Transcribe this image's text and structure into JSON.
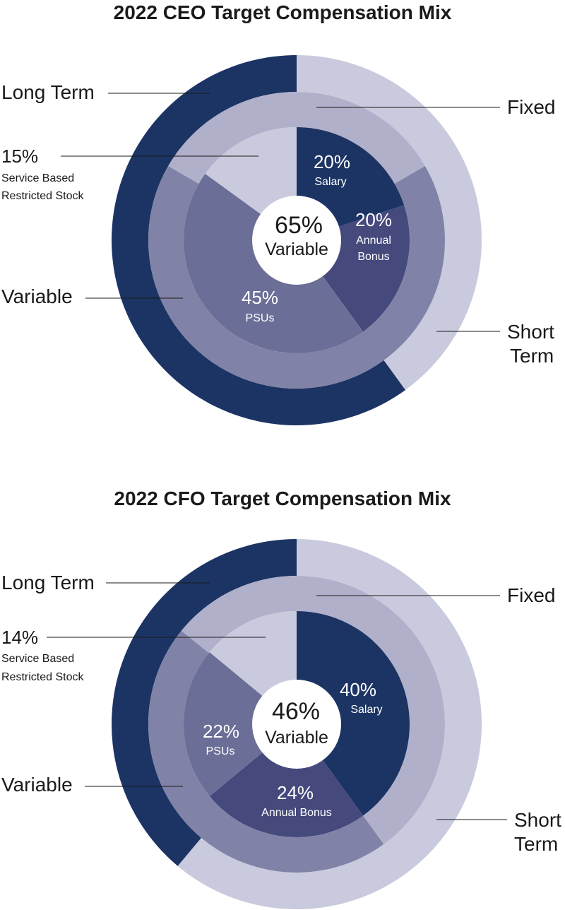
{
  "colors": {
    "navy": "#1c3464",
    "light_lavender": "#c9cadd",
    "mid_lavender": "#b0b0cb",
    "slate_violet": "#8083a7",
    "deep_indigo": "#45497c",
    "violet": "#6b6e96",
    "pale": "#c9cadd",
    "center": "#ffffff"
  },
  "chart_data": [
    {
      "type": "pie",
      "title": "2022 CEO Target Compensation Mix",
      "center_label": {
        "value": "65%",
        "text": "Variable"
      },
      "outer_ring": [
        {
          "name": "Short Term",
          "start_deg": 0,
          "end_deg": 144
        },
        {
          "name": "Long Term",
          "start_deg": 144,
          "end_deg": 360
        }
      ],
      "middle_ring": [
        {
          "name": "Fixed",
          "start_deg": -60,
          "end_deg": 60
        },
        {
          "name": "Variable",
          "start_deg": 60,
          "end_deg": 300
        }
      ],
      "inner_pie": [
        {
          "name": "Salary",
          "value": 20,
          "label": "20%"
        },
        {
          "name": "Annual Bonus",
          "value": 20,
          "label": "20%"
        },
        {
          "name": "PSUs",
          "value": 45,
          "label": "45%"
        },
        {
          "name": "Service Based Restricted Stock",
          "value": 15,
          "label": "15%"
        }
      ],
      "text": {
        "long_term": "Long Term",
        "fixed": "Fixed",
        "variable": "Variable",
        "short_term_1": "Short",
        "short_term_2": "Term",
        "sbrs_pct": "15%",
        "sbrs_1": "Service Based",
        "sbrs_2": "Restricted Stock",
        "salary_pct": "20%",
        "salary": "Salary",
        "bonus_pct": "20%",
        "bonus_1": "Annual",
        "bonus_2": "Bonus",
        "psu_pct": "45%",
        "psu": "PSUs"
      }
    },
    {
      "type": "pie",
      "title": "2022 CFO Target Compensation Mix",
      "center_label": {
        "value": "46%",
        "text": "Variable"
      },
      "outer_ring": [
        {
          "name": "Short Term",
          "start_deg": 0,
          "end_deg": 220
        },
        {
          "name": "Long Term",
          "start_deg": 220,
          "end_deg": 360
        }
      ],
      "middle_ring": [
        {
          "name": "Fixed",
          "start_deg": -51,
          "end_deg": 144
        },
        {
          "name": "Variable",
          "start_deg": 144,
          "end_deg": 309
        }
      ],
      "inner_pie": [
        {
          "name": "Salary",
          "value": 40,
          "label": "40%"
        },
        {
          "name": "Annual Bonus",
          "value": 24,
          "label": "24%"
        },
        {
          "name": "PSUs",
          "value": 22,
          "label": "22%"
        },
        {
          "name": "Service Based Restricted Stock",
          "value": 14,
          "label": "14%"
        }
      ],
      "text": {
        "long_term": "Long Term",
        "fixed": "Fixed",
        "variable": "Variable",
        "short_term_1": "Short",
        "short_term_2": "Term",
        "sbrs_pct": "14%",
        "sbrs_1": "Service Based",
        "sbrs_2": "Restricted Stock",
        "salary_pct": "40%",
        "salary": "Salary",
        "bonus": "Annual Bonus",
        "bonus_pct": "24%",
        "psu_pct": "22%",
        "psu": "PSUs"
      }
    }
  ]
}
